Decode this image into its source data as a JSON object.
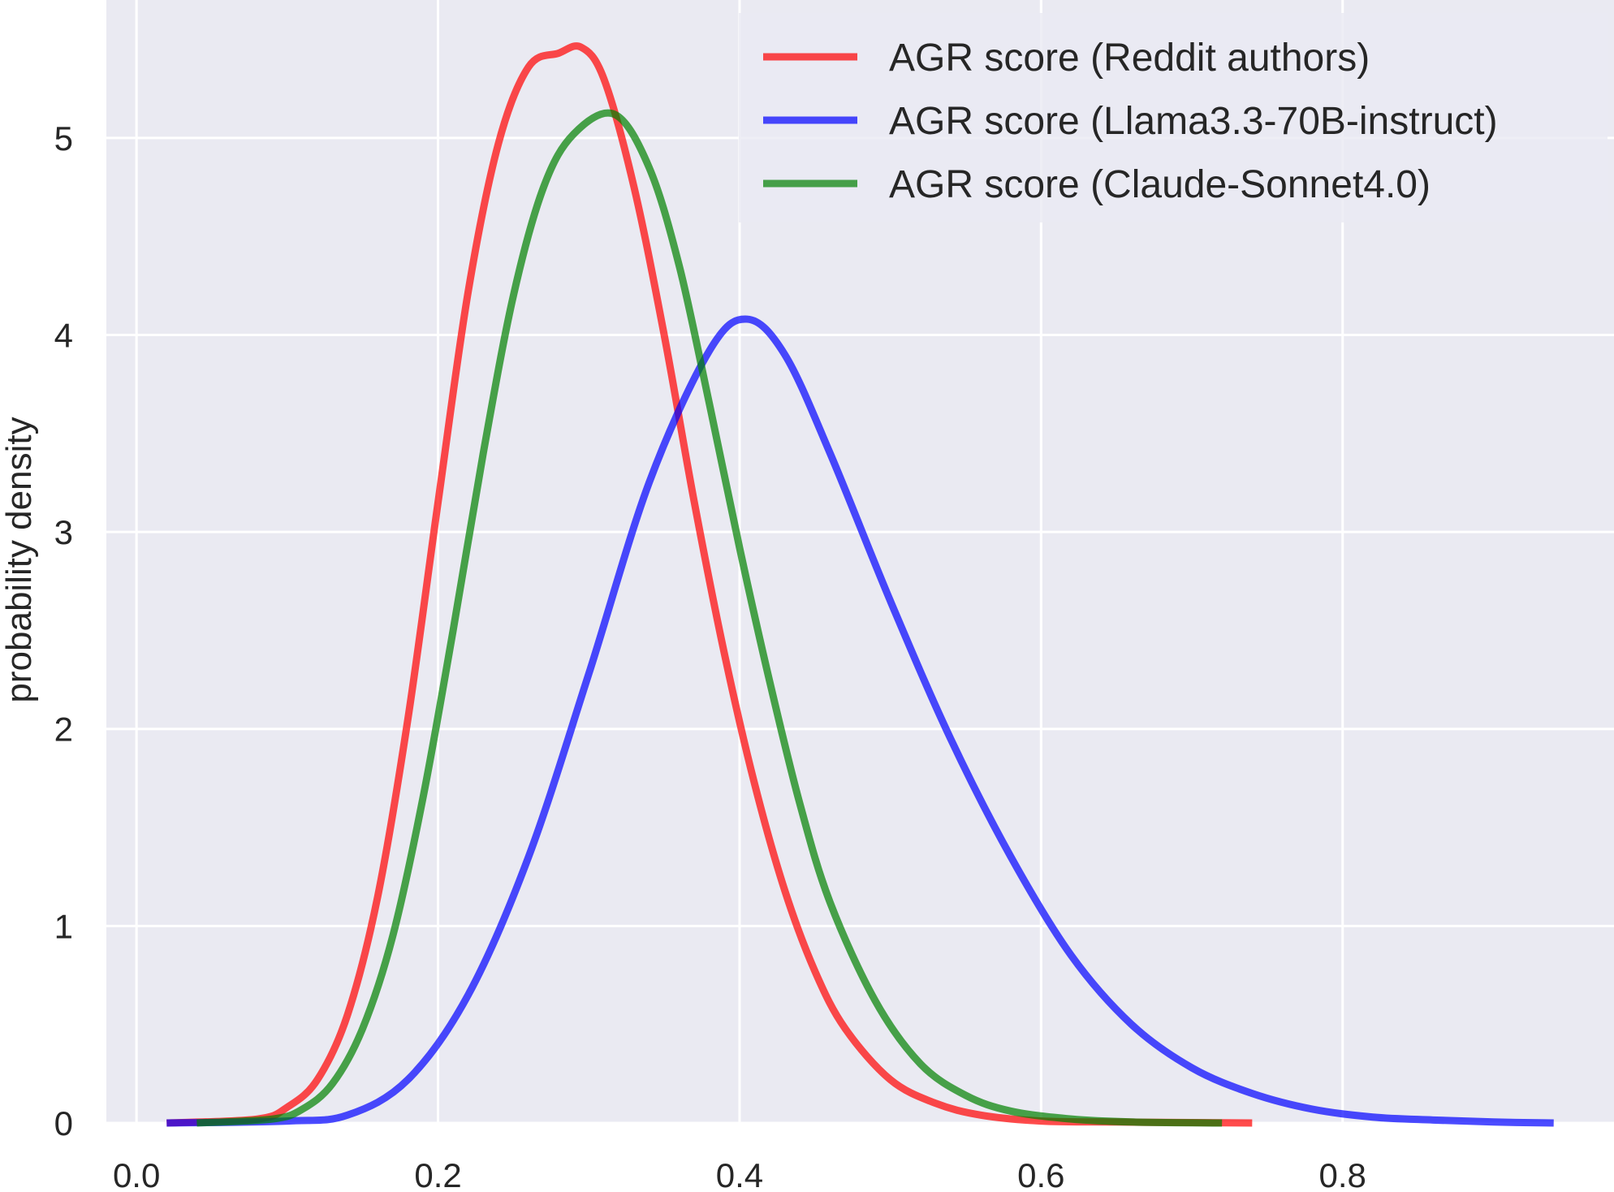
{
  "chart_data": {
    "type": "line",
    "title": "",
    "xlabel": "",
    "ylabel": "probability density",
    "xlim": [
      -0.02,
      0.98
    ],
    "ylim": [
      0,
      5.7
    ],
    "xticks": [
      0.0,
      0.2,
      0.4,
      0.6,
      0.8
    ],
    "xtick_labels": [
      "0.0",
      "0.2",
      "0.4",
      "0.6",
      "0.8"
    ],
    "yticks": [
      0,
      1,
      2,
      3,
      4,
      5
    ],
    "ytick_labels": [
      "0",
      "1",
      "2",
      "3",
      "4",
      "5"
    ],
    "grid": true,
    "background": "#eaeaf2",
    "grid_color": "#ffffff",
    "legend_position": "top-right",
    "series": [
      {
        "name": "AGR score (Reddit authors)",
        "color": "#ff0000",
        "x": [
          0.02,
          0.08,
          0.1,
          0.12,
          0.14,
          0.16,
          0.18,
          0.2,
          0.22,
          0.24,
          0.26,
          0.28,
          0.295,
          0.31,
          0.33,
          0.35,
          0.37,
          0.39,
          0.41,
          0.43,
          0.45,
          0.47,
          0.5,
          0.53,
          0.56,
          0.6,
          0.65,
          0.7,
          0.74
        ],
        "y": [
          0.0,
          0.02,
          0.08,
          0.22,
          0.55,
          1.15,
          2.05,
          3.15,
          4.22,
          4.97,
          5.36,
          5.43,
          5.46,
          5.3,
          4.75,
          4.0,
          3.15,
          2.38,
          1.72,
          1.18,
          0.77,
          0.48,
          0.22,
          0.1,
          0.04,
          0.01,
          0.005,
          0.002,
          0.0
        ]
      },
      {
        "name": "AGR score (Llama3.3-70B-instruct)",
        "color": "#0000ff",
        "x": [
          0.02,
          0.1,
          0.14,
          0.18,
          0.22,
          0.26,
          0.3,
          0.34,
          0.38,
          0.405,
          0.43,
          0.46,
          0.5,
          0.54,
          0.58,
          0.62,
          0.66,
          0.7,
          0.74,
          0.78,
          0.82,
          0.86,
          0.9,
          0.94
        ],
        "y": [
          0.0,
          0.01,
          0.04,
          0.22,
          0.65,
          1.35,
          2.28,
          3.25,
          3.92,
          4.08,
          3.9,
          3.4,
          2.65,
          1.95,
          1.35,
          0.85,
          0.5,
          0.28,
          0.15,
          0.07,
          0.03,
          0.015,
          0.005,
          0.0
        ]
      },
      {
        "name": "AGR score (Claude-Sonnet4.0)",
        "color": "#008000",
        "x": [
          0.04,
          0.09,
          0.11,
          0.13,
          0.15,
          0.17,
          0.19,
          0.21,
          0.23,
          0.25,
          0.27,
          0.29,
          0.317,
          0.34,
          0.36,
          0.38,
          0.4,
          0.42,
          0.44,
          0.46,
          0.49,
          0.52,
          0.55,
          0.58,
          0.62,
          0.66,
          0.72
        ],
        "y": [
          0.0,
          0.02,
          0.07,
          0.2,
          0.48,
          0.95,
          1.65,
          2.5,
          3.4,
          4.2,
          4.75,
          5.02,
          5.12,
          4.85,
          4.35,
          3.65,
          2.92,
          2.24,
          1.62,
          1.12,
          0.62,
          0.3,
          0.14,
          0.06,
          0.02,
          0.005,
          0.0
        ]
      }
    ]
  }
}
